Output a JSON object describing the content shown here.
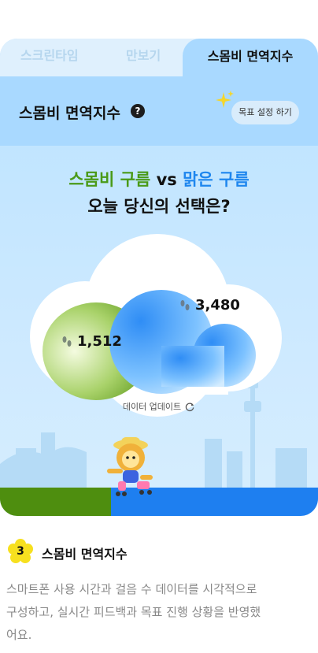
{
  "tabs": [
    {
      "label": "스크린타임",
      "active": false
    },
    {
      "label": "만보기",
      "active": false
    },
    {
      "label": "스몸비 면역지수",
      "active": true
    }
  ],
  "header": {
    "title": "스몸비 면역지수",
    "help_symbol": "?",
    "goal_button": "목표 설정 하기"
  },
  "headline": {
    "smog_cloud": "스몸비 구름",
    "vs": "vs",
    "clear_cloud": "맑은 구름",
    "question": "오늘 당신의 선택은?"
  },
  "clouds": {
    "smog_steps": "1,512",
    "clear_steps": "3,480"
  },
  "update_label": "데이터 업데이트",
  "section": {
    "number": "3",
    "title": "스몸비 면역지수",
    "description": "스마트폰 사용 시간과 걸음 수 데이터를 시각적으로 구성하고, 실시간 피드백과 목표 진행 상황을 반영했어요."
  },
  "colors": {
    "smog_green": "#4a9a17",
    "clear_blue": "#1e86ee",
    "card_background": "#a9d9ff"
  },
  "icons": [
    "help-icon",
    "sparkle-icon",
    "footprint-icon",
    "refresh-icon",
    "number-badge-flower"
  ]
}
